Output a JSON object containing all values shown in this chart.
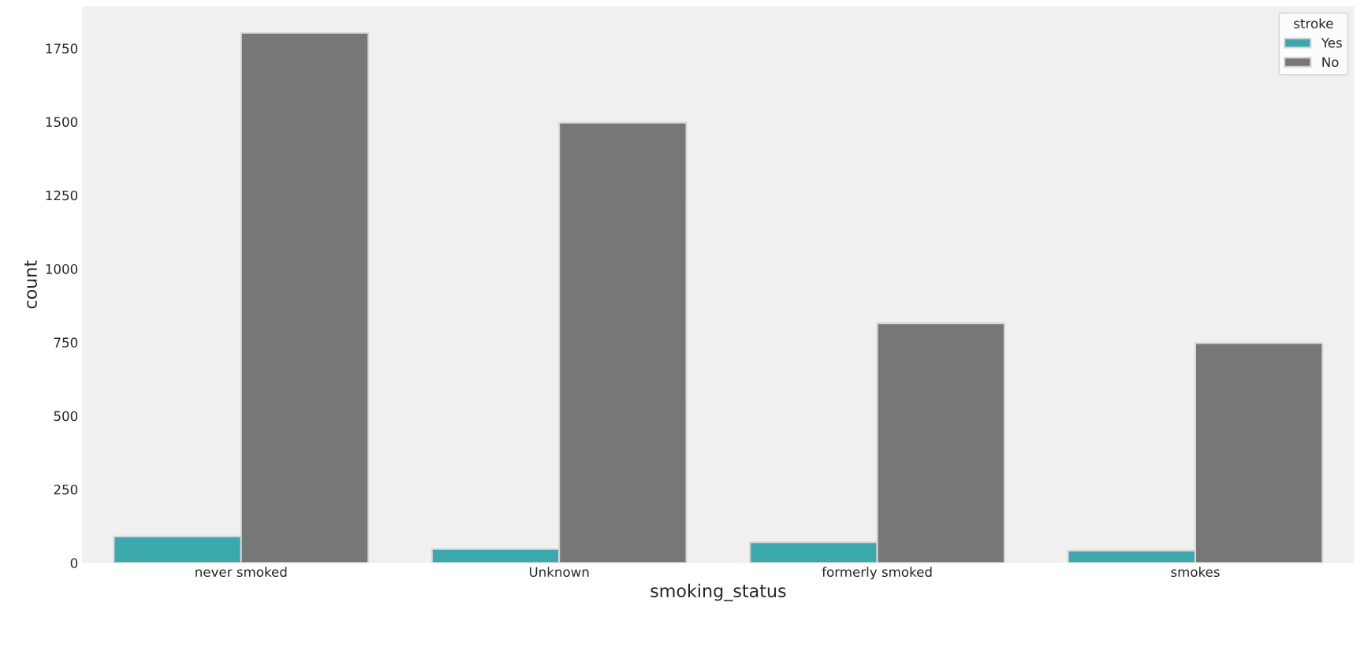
{
  "chart_data": {
    "type": "bar",
    "xlabel": "smoking_status",
    "ylabel": "count",
    "legend_title": "stroke",
    "categories": [
      "never smoked",
      "Unknown",
      "formerly smoked",
      "smokes"
    ],
    "series": [
      {
        "name": "Yes",
        "color": "#3aa8ad",
        "values": [
          90,
          47,
          70,
          42
        ]
      },
      {
        "name": "No",
        "color": "#777777",
        "values": [
          1802,
          1497,
          815,
          747
        ]
      }
    ],
    "ylim": [
      0,
      1892
    ],
    "yticks": [
      0,
      250,
      500,
      750,
      1000,
      1250,
      1500,
      1750
    ],
    "grid": false,
    "legend": "top right"
  }
}
